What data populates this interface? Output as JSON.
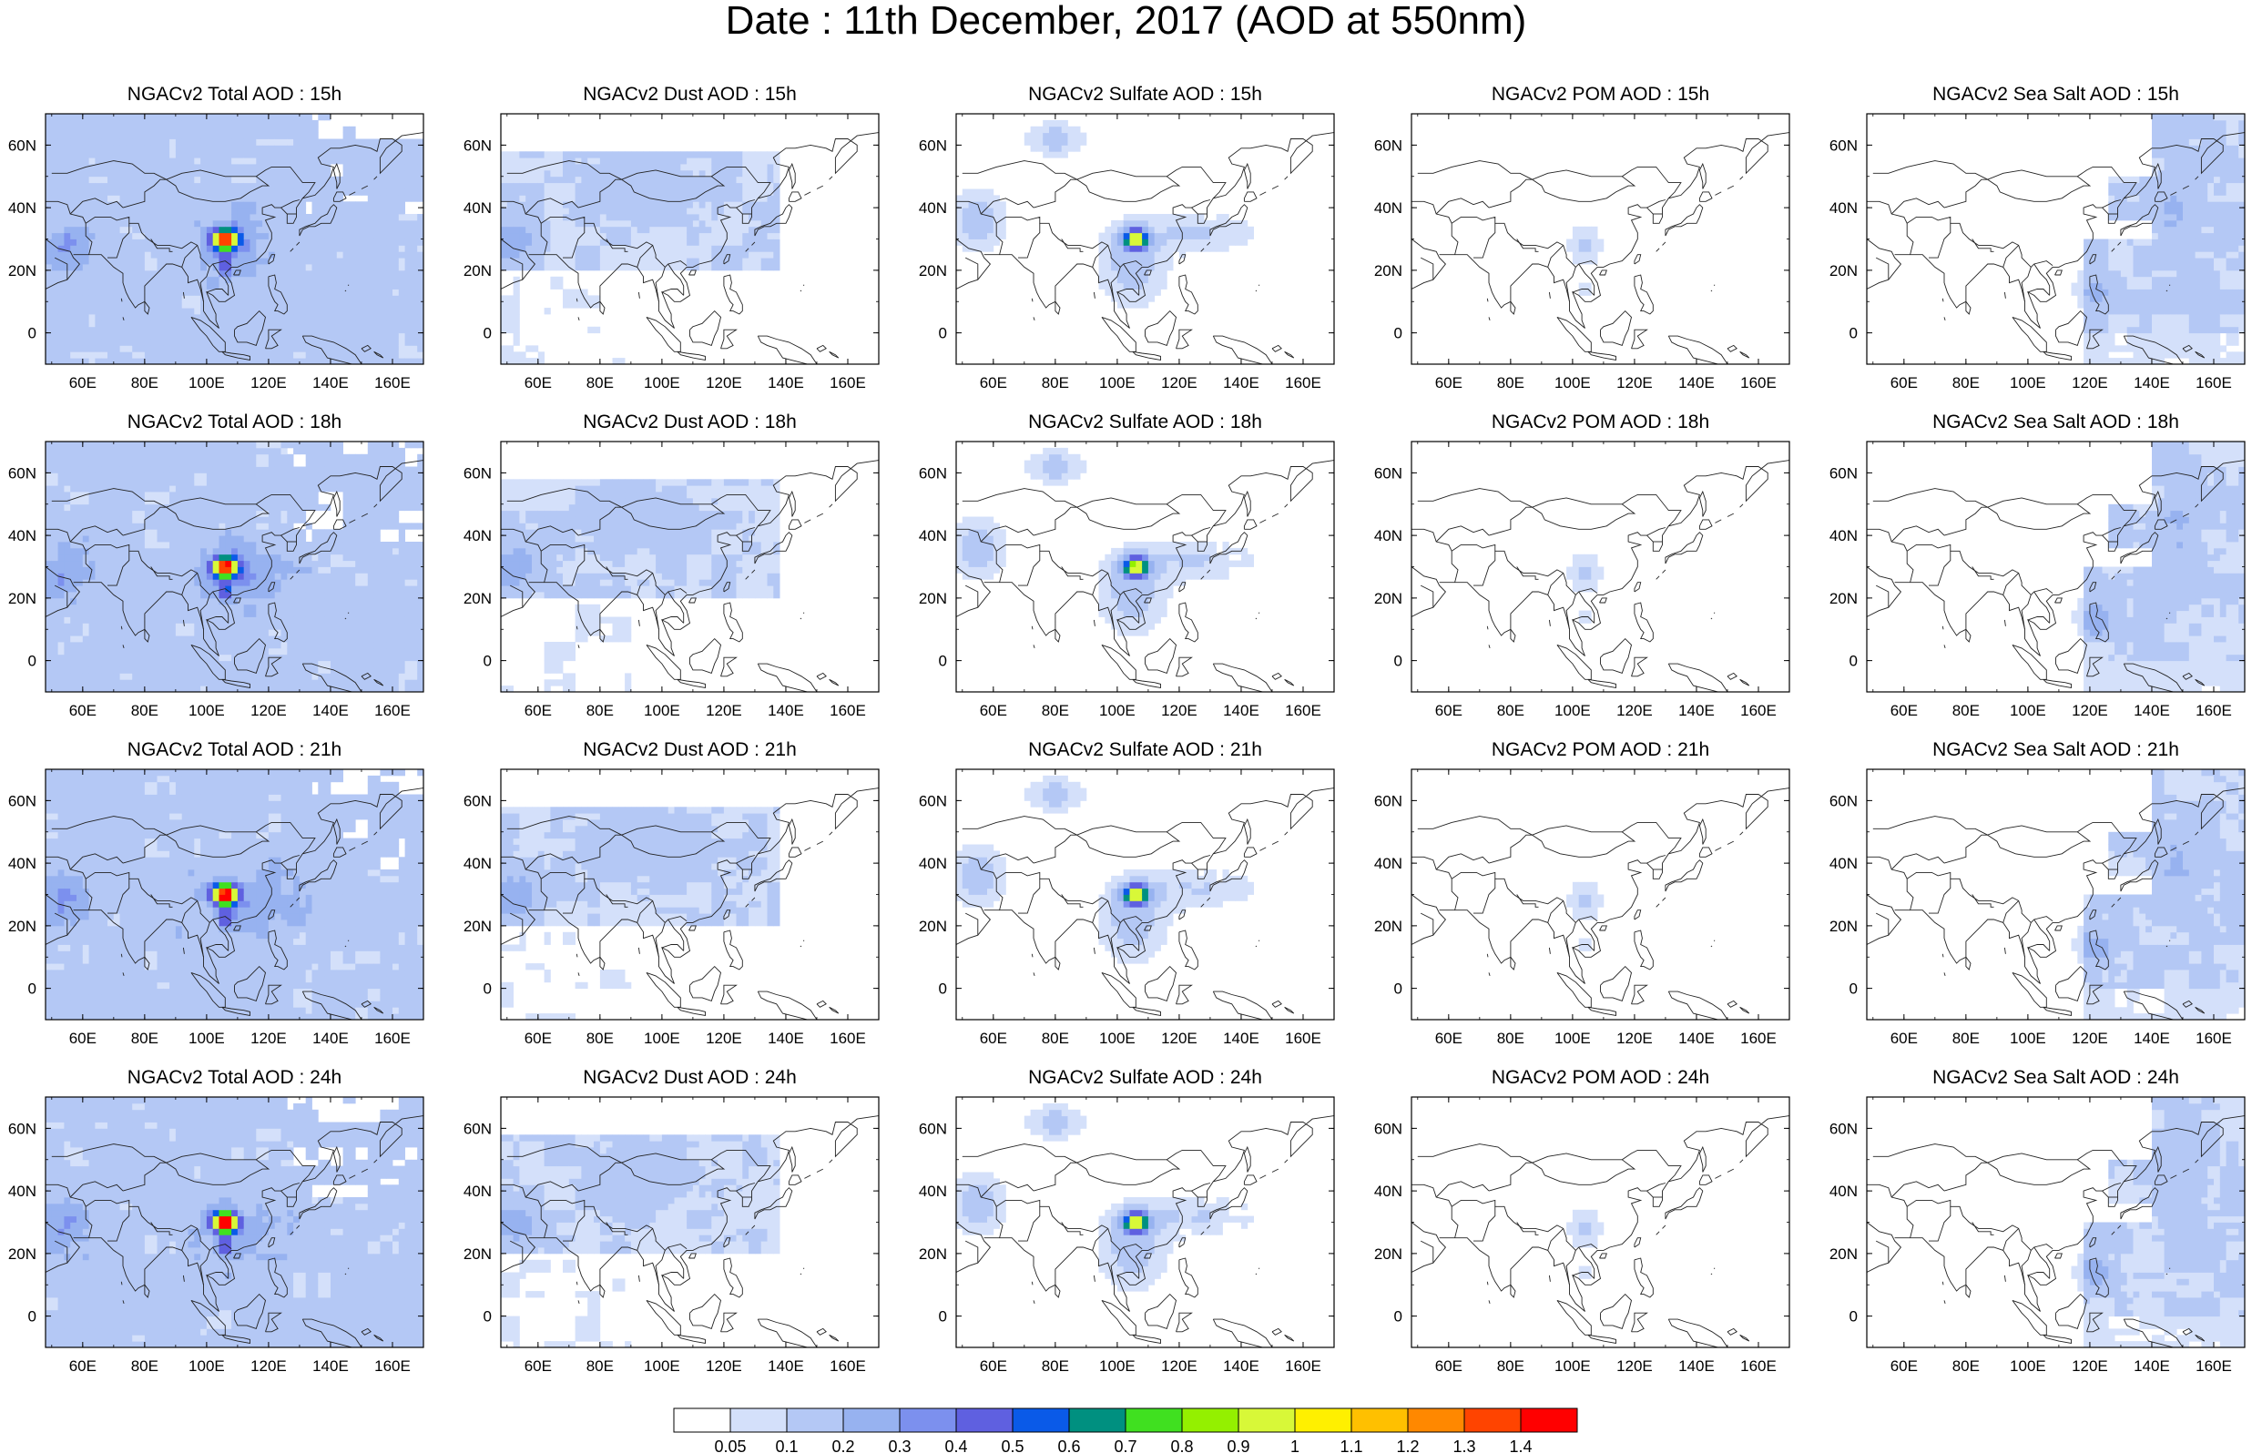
{
  "title": "Date : 11th December, 2017 (AOD at 550nm)",
  "lon_labels": [
    "60E",
    "80E",
    "100E",
    "120E",
    "140E",
    "160E"
  ],
  "lat_labels": [
    "60N",
    "40N",
    "20N",
    "0"
  ],
  "colorbar": {
    "levels": [
      "0.05",
      "0.1",
      "0.2",
      "0.3",
      "0.4",
      "0.5",
      "0.6",
      "0.7",
      "0.8",
      "0.9",
      "1",
      "1.1",
      "1.2",
      "1.3",
      "1.4"
    ],
    "colors": [
      "#ffffff",
      "#d4e0fa",
      "#b4c8f5",
      "#97b2f0",
      "#7c90ee",
      "#5f60e0",
      "#0a5ae8",
      "#009080",
      "#40e020",
      "#94f000",
      "#d8f838",
      "#fff000",
      "#ffc000",
      "#ff8800",
      "#ff4400",
      "#ff0000"
    ]
  },
  "columns": [
    "Total",
    "Dust",
    "Sulfate",
    "POM",
    "Sea Salt"
  ],
  "panels": [
    [
      "NGACv2 Total AOD : 15h",
      "NGACv2 Dust AOD : 15h",
      "NGACv2 Sulfate AOD : 15h",
      "NGACv2 POM AOD : 15h",
      "NGACv2 Sea Salt AOD : 15h"
    ],
    [
      "NGACv2 Total AOD : 18h",
      "NGACv2 Dust AOD : 18h",
      "NGACv2 Sulfate AOD : 18h",
      "NGACv2 POM AOD : 18h",
      "NGACv2 Sea Salt AOD : 18h"
    ],
    [
      "NGACv2 Total AOD : 21h",
      "NGACv2 Dust AOD : 21h",
      "NGACv2 Sulfate AOD : 21h",
      "NGACv2 POM AOD : 21h",
      "NGACv2 Sea Salt AOD : 21h"
    ],
    [
      "NGACv2 Total AOD : 24h",
      "NGACv2 Dust AOD : 24h",
      "NGACv2 Sulfate AOD : 24h",
      "NGACv2 POM AOD : 24h",
      "NGACv2 Sea Salt  AOD : 24h"
    ]
  ]
}
